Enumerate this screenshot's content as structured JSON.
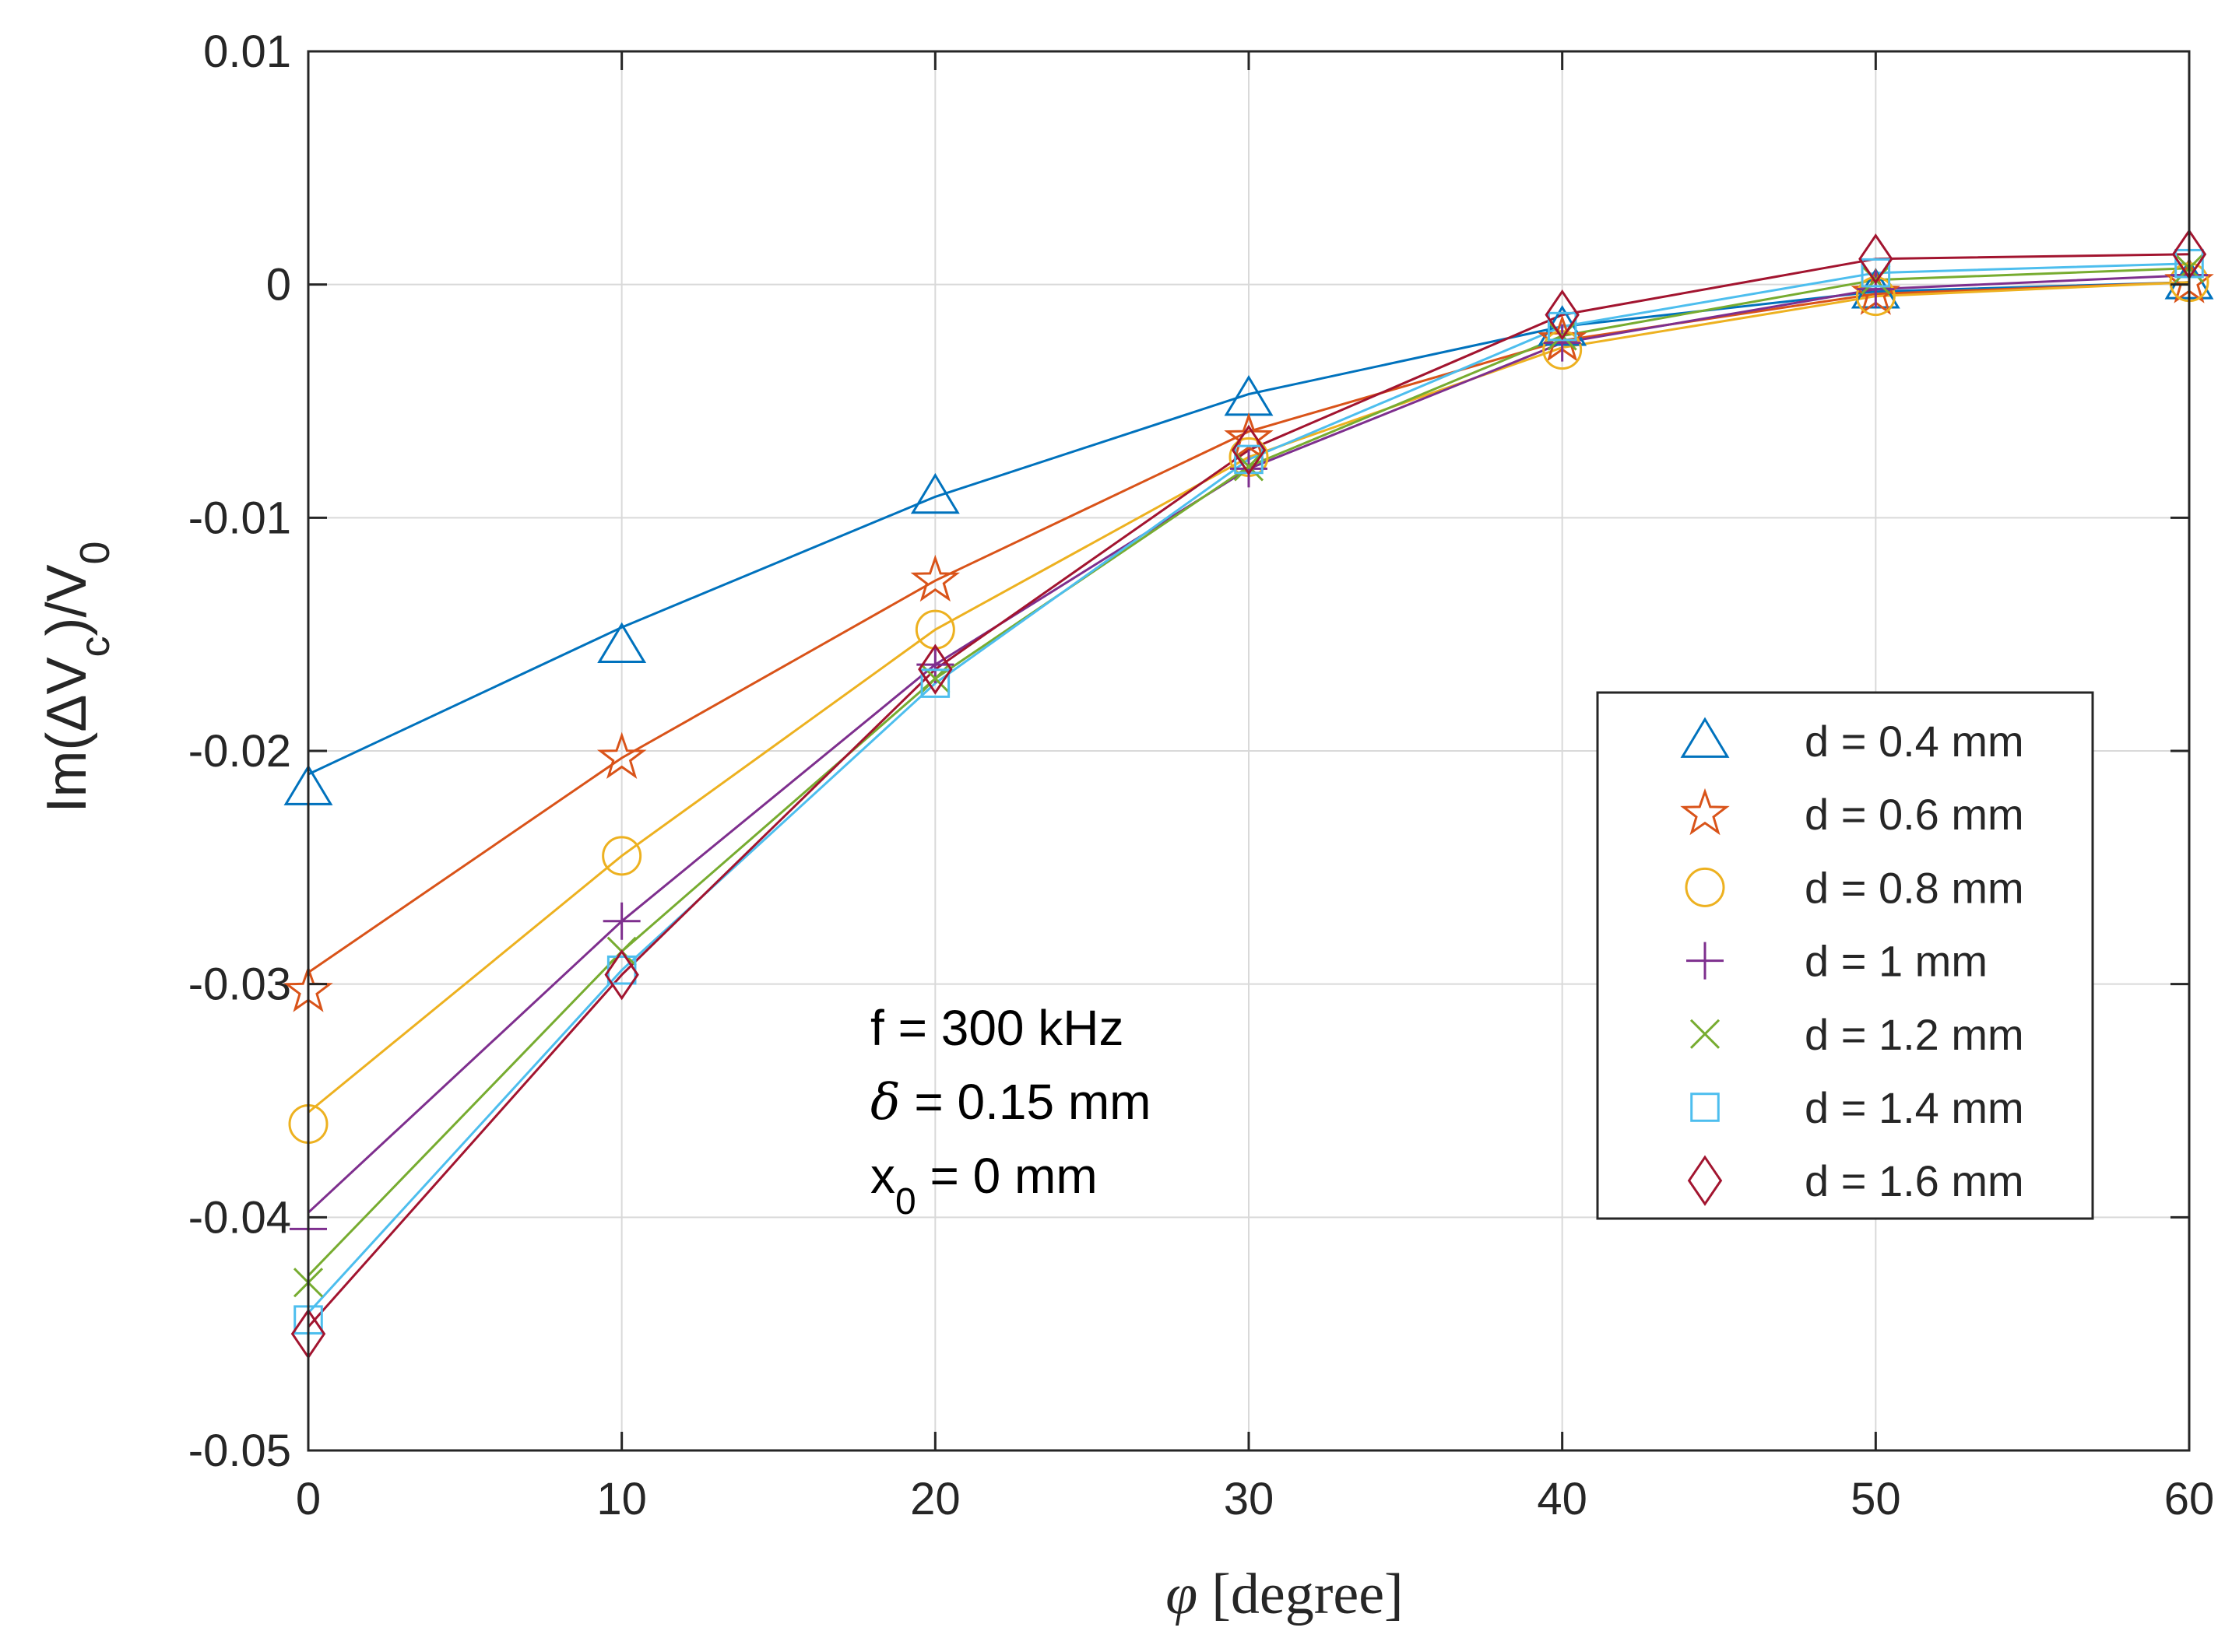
{
  "chart_data": {
    "type": "line",
    "title": "",
    "xlabel": "[degree]",
    "xlabel_symbol": "φ",
    "ylabel": "Im(ΔV",
    "ylabel_sub": "c",
    "ylabel_mid": ")/V",
    "ylabel_sub2": "0",
    "x": [
      0,
      10,
      20,
      30,
      40,
      50,
      60
    ],
    "xlim": [
      0,
      60
    ],
    "ylim": [
      -0.05,
      0.01
    ],
    "xticks": [
      0,
      10,
      20,
      30,
      40,
      50,
      60
    ],
    "yticks": [
      0.01,
      0,
      -0.01,
      -0.02,
      -0.03,
      -0.04,
      -0.05
    ],
    "xtick_labels": [
      "0",
      "10",
      "20",
      "30",
      "40",
      "50",
      "60"
    ],
    "ytick_labels": [
      "0.01",
      "0",
      "-0.01",
      "-0.02",
      "-0.03",
      "-0.04",
      "-0.05"
    ],
    "grid": true,
    "legend_position": "right",
    "series": [
      {
        "name": "d = 0.4 mm",
        "marker": "triangle",
        "color": "#0072BD",
        "values": [
          -0.0216,
          -0.0155,
          -0.0091,
          -0.0049,
          -0.0019,
          -0.0003,
          0.0001
        ],
        "line": [
          -0.021,
          -0.0147,
          -0.0091,
          -0.0047,
          -0.0018,
          -0.0003,
          0.0001
        ]
      },
      {
        "name": "d = 0.6 mm",
        "marker": "star",
        "color": "#D95319",
        "values": [
          -0.0303,
          -0.0203,
          -0.0127,
          -0.0066,
          -0.0024,
          -0.0004,
          0.0001
        ],
        "line": [
          -0.0295,
          -0.0203,
          -0.0127,
          -0.0063,
          -0.0024,
          -0.0004,
          0.0001
        ]
      },
      {
        "name": "d = 0.8 mm",
        "marker": "circle",
        "color": "#EDB120",
        "values": [
          -0.036,
          -0.0245,
          -0.0148,
          -0.0074,
          -0.0028,
          -0.0005,
          0.0001
        ],
        "line": [
          -0.0355,
          -0.0245,
          -0.0148,
          -0.0074,
          -0.0027,
          -0.0005,
          0.0001
        ]
      },
      {
        "name": "d = 1 mm",
        "marker": "plus",
        "color": "#7E2F8E",
        "values": [
          -0.0405,
          -0.0273,
          -0.0163,
          -0.0079,
          -0.0025,
          -0.0002,
          0.0004
        ],
        "line": [
          -0.0398,
          -0.0273,
          -0.0163,
          -0.0079,
          -0.0025,
          -0.0002,
          0.0004
        ]
      },
      {
        "name": "d = 1.2 mm",
        "marker": "x",
        "color": "#77AC30",
        "values": [
          -0.0428,
          -0.0286,
          -0.0169,
          -0.0078,
          -0.0022,
          0.0002,
          0.0007
        ],
        "line": [
          -0.0425,
          -0.0286,
          -0.0169,
          -0.0078,
          -0.0022,
          0.0002,
          0.0007
        ]
      },
      {
        "name": "d = 1.4 mm",
        "marker": "square",
        "color": "#4DBEEE",
        "values": [
          -0.0444,
          -0.0294,
          -0.0171,
          -0.0075,
          -0.0018,
          0.0005,
          0.0009
        ],
        "line": [
          -0.0441,
          -0.0294,
          -0.0171,
          -0.0075,
          -0.0018,
          0.0005,
          0.0009
        ]
      },
      {
        "name": "d = 1.6 mm",
        "marker": "diamond",
        "color": "#A2142F",
        "values": [
          -0.045,
          -0.0296,
          -0.0165,
          -0.0071,
          -0.0013,
          0.0011,
          0.0013
        ],
        "line": [
          -0.0447,
          -0.0296,
          -0.0165,
          -0.0071,
          -0.0013,
          0.0011,
          0.0013
        ]
      }
    ],
    "annotations": {
      "line1": "f = 300 kHz",
      "line2_symbol": "δ",
      "line2_rest": " = 0.15 mm",
      "line3_main": "x",
      "line3_sub": "0",
      "line3_rest": " = 0 mm"
    }
  }
}
